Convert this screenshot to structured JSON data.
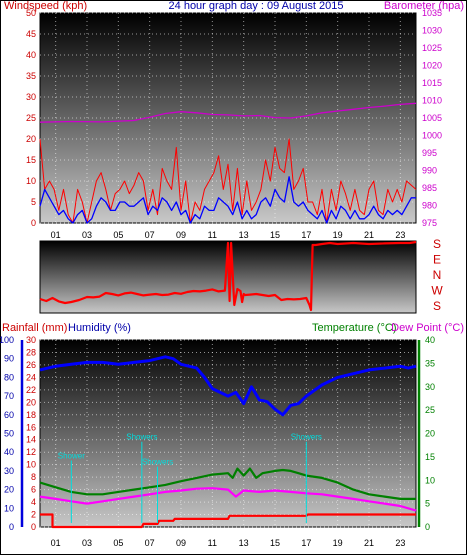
{
  "title": "24 hour graph day : 09 August 2015",
  "colors": {
    "wind": "#ff0000",
    "gust": "#ff0000",
    "avg": "#0000ff",
    "baro": "#cc00cc",
    "dir": "#ff0000",
    "humidity": "#0000ff",
    "temperature": "#008000",
    "dewpoint": "#ff00ff",
    "rainfall": "#ff0000",
    "rain_label": "#00dddd"
  },
  "chart_data": [
    {
      "type": "line",
      "title": "24 hour graph day : 09 August 2015",
      "ylabel_left": "Windspeed (kph)",
      "ylabel_right": "Barometer (hpa)",
      "ylim_left": [
        0,
        50
      ],
      "ylim_right": [
        975,
        1035
      ],
      "y_ticks_left": [
        "0",
        "5",
        "10",
        "15",
        "20",
        "25",
        "30",
        "35",
        "40",
        "45",
        "50"
      ],
      "y_ticks_right": [
        "975",
        "980",
        "985",
        "990",
        "995",
        "1000",
        "1005",
        "1010",
        "1015",
        "1020",
        "1025",
        "1030",
        "1035"
      ],
      "x_ticks": [
        "01",
        "03",
        "05",
        "07",
        "09",
        "11",
        "13",
        "15",
        "17",
        "19",
        "21",
        "23"
      ],
      "grid": true,
      "series": [
        {
          "key": "gust",
          "x": [
            0.0,
            0.3,
            0.6,
            0.9,
            1.2,
            1.5,
            1.8,
            2.1,
            2.4,
            2.7,
            3.0,
            3.3,
            3.6,
            3.9,
            4.2,
            4.5,
            4.8,
            5.1,
            5.4,
            5.7,
            6.0,
            6.3,
            6.6,
            6.9,
            7.2,
            7.5,
            7.8,
            8.1,
            8.4,
            8.7,
            9.0,
            9.3,
            9.6,
            9.9,
            10.2,
            10.5,
            10.8,
            11.1,
            11.4,
            11.7,
            12.0,
            12.3,
            12.6,
            12.9,
            13.2,
            13.5,
            13.8,
            14.1,
            14.4,
            14.7,
            15.0,
            15.3,
            15.6,
            15.9,
            16.2,
            16.5,
            16.8,
            17.1,
            17.4,
            17.7,
            18.0,
            18.3,
            18.6,
            18.9,
            19.2,
            19.5,
            19.8,
            20.1,
            20.4,
            20.7,
            21.0,
            21.3,
            21.6,
            21.9,
            22.2,
            22.5,
            22.8,
            23.1,
            23.4,
            23.7,
            24.0
          ],
          "values": [
            20,
            8,
            10,
            8,
            3,
            8,
            2,
            0,
            8,
            5,
            0,
            5,
            10,
            12,
            8,
            3,
            7,
            8,
            10,
            7,
            9,
            12,
            10,
            3,
            8,
            2,
            13,
            10,
            8,
            18,
            3,
            10,
            0,
            5,
            3,
            8,
            10,
            12,
            16,
            8,
            14,
            3,
            13,
            2,
            10,
            3,
            5,
            8,
            15,
            10,
            18,
            13,
            12,
            20,
            8,
            10,
            13,
            5,
            5,
            2,
            8,
            0,
            8,
            3,
            10,
            7,
            3,
            8,
            3,
            2,
            8,
            10,
            3,
            2,
            8,
            5,
            8,
            5,
            10,
            9,
            8
          ]
        },
        {
          "key": "avg",
          "x": [
            0.0,
            0.3,
            0.6,
            0.9,
            1.2,
            1.5,
            1.8,
            2.1,
            2.4,
            2.7,
            3.0,
            3.3,
            3.6,
            3.9,
            4.2,
            4.5,
            4.8,
            5.1,
            5.4,
            5.7,
            6.0,
            6.3,
            6.6,
            6.9,
            7.2,
            7.5,
            7.8,
            8.1,
            8.4,
            8.7,
            9.0,
            9.3,
            9.6,
            9.9,
            10.2,
            10.5,
            10.8,
            11.1,
            11.4,
            11.7,
            12.0,
            12.3,
            12.6,
            12.9,
            13.2,
            13.5,
            13.8,
            14.1,
            14.4,
            14.7,
            15.0,
            15.3,
            15.6,
            15.9,
            16.2,
            16.5,
            16.8,
            17.1,
            17.4,
            17.7,
            18.0,
            18.3,
            18.6,
            18.9,
            19.2,
            19.5,
            19.8,
            20.1,
            20.4,
            20.7,
            21.0,
            21.3,
            21.6,
            21.9,
            22.2,
            22.5,
            22.8,
            23.1,
            23.4,
            23.7,
            24.0
          ],
          "values": [
            4,
            8,
            6,
            4,
            2,
            3,
            1,
            0,
            2,
            3,
            0,
            1,
            4,
            6,
            5,
            3,
            3,
            5,
            5,
            4,
            4,
            5,
            6,
            2,
            4,
            3,
            6,
            5,
            3,
            5,
            2,
            3,
            0,
            2,
            1,
            4,
            3,
            3,
            6,
            5,
            4,
            2,
            5,
            1,
            3,
            1,
            2,
            5,
            6,
            4,
            8,
            6,
            5,
            11,
            5,
            4,
            5,
            3,
            2,
            1,
            3,
            0,
            3,
            1,
            4,
            3,
            1,
            3,
            1,
            1,
            2,
            4,
            2,
            1,
            3,
            2,
            3,
            2,
            4,
            6,
            6
          ]
        },
        {
          "key": "baro",
          "axis": "right",
          "x": [
            0,
            2,
            4,
            6,
            7,
            8,
            9,
            10,
            11,
            12,
            13,
            14,
            15,
            16,
            17,
            18,
            19,
            20,
            21,
            22,
            23,
            24
          ],
          "values": [
            1003.8,
            1004.0,
            1003.9,
            1004.3,
            1005.2,
            1006.3,
            1006.8,
            1006.5,
            1006.0,
            1005.9,
            1005.6,
            1005.7,
            1005.1,
            1005.0,
            1005.6,
            1006.5,
            1007.0,
            1007.5,
            1008.0,
            1008.4,
            1008.9,
            1009.2
          ]
        }
      ]
    },
    {
      "type": "line",
      "ylabel_right": [
        "S",
        "E",
        "N",
        "W",
        "S"
      ],
      "ylim": [
        0,
        360
      ],
      "series": [
        {
          "key": "dir",
          "x": [
            0,
            0.4,
            0.8,
            1.2,
            1.6,
            2.0,
            2.5,
            3.0,
            3.4,
            3.8,
            4.2,
            4.6,
            5.0,
            5.4,
            5.8,
            6.2,
            6.6,
            7.0,
            7.4,
            7.8,
            8.2,
            8.6,
            9.0,
            9.4,
            9.8,
            10.2,
            10.6,
            11.0,
            11.4,
            11.8,
            12.0,
            12.1,
            12.2,
            12.4,
            12.6,
            12.8,
            12.9,
            13.0,
            13.1,
            13.4,
            13.8,
            14.2,
            14.6,
            15.0,
            15.4,
            15.8,
            16.2,
            16.6,
            17.0,
            17.2,
            17.3,
            17.4,
            17.6,
            18.0,
            18.5,
            19.0,
            20.0,
            21.0,
            22.0,
            23.0,
            23.6,
            24.0
          ],
          "values": [
            70,
            60,
            75,
            58,
            50,
            55,
            65,
            80,
            78,
            82,
            100,
            95,
            88,
            98,
            102,
            95,
            88,
            92,
            95,
            90,
            92,
            100,
            96,
            105,
            110,
            108,
            112,
            118,
            108,
            112,
            350,
            60,
            350,
            40,
            120,
            110,
            55,
            95,
            90,
            92,
            95,
            90,
            85,
            90,
            65,
            70,
            68,
            70,
            75,
            40,
            15,
            340,
            340,
            345,
            350,
            345,
            350,
            345,
            348,
            350,
            350,
            355
          ]
        }
      ]
    },
    {
      "type": "line",
      "ylabel_rain": "Rainfall (mm)",
      "ylabel_hum": "Humidity (%)",
      "ylabel_temp": "Temperature (°C)",
      "ylabel_dew": "Dew Point (°C)",
      "ylim_rain": [
        0,
        30
      ],
      "ylim_hum": [
        0,
        100
      ],
      "ylim_temp": [
        0,
        40
      ],
      "y_ticks_rain": [
        "0",
        "2",
        "4",
        "6",
        "8",
        "10",
        "12",
        "14",
        "16",
        "18",
        "20",
        "22",
        "24",
        "26",
        "28",
        "30"
      ],
      "y_ticks_hum": [
        "0",
        "10",
        "20",
        "30",
        "40",
        "50",
        "60",
        "70",
        "80",
        "90",
        "100"
      ],
      "y_ticks_temp": [
        "0",
        "5",
        "10",
        "15",
        "20",
        "25",
        "30",
        "35",
        "40"
      ],
      "x_ticks": [
        "01",
        "03",
        "05",
        "07",
        "09",
        "11",
        "13",
        "15",
        "17",
        "19",
        "21",
        "23"
      ],
      "rain_annotations": [
        {
          "x": 2.0,
          "y": 11,
          "text": "Shower"
        },
        {
          "x": 6.5,
          "y": 14,
          "text": "Showers"
        },
        {
          "x": 7.5,
          "y": 10,
          "text": "Showers"
        },
        {
          "x": 17.0,
          "y": 14,
          "text": "Showers"
        }
      ],
      "series": [
        {
          "key": "humidity",
          "x": [
            0,
            1,
            2,
            3,
            4,
            5,
            6,
            7,
            8,
            8.5,
            9,
            10,
            10.5,
            11,
            11.5,
            12,
            12.5,
            13,
            13.5,
            14,
            14.5,
            15,
            15.5,
            16,
            16.5,
            17,
            18,
            19,
            20,
            21,
            22,
            23,
            23.5,
            24
          ],
          "values": [
            84,
            86,
            87,
            88,
            88,
            87,
            88,
            89,
            91,
            90,
            87,
            85,
            80,
            74,
            72,
            70,
            72,
            66,
            75,
            68,
            67,
            63,
            60,
            65,
            66,
            70,
            76,
            80,
            82,
            84,
            85,
            86,
            85,
            86
          ]
        },
        {
          "key": "temperature",
          "axis": "temp",
          "x": [
            0,
            1,
            2,
            3,
            4,
            5,
            6,
            7,
            8,
            9,
            10,
            11,
            12,
            12.3,
            12.6,
            13,
            13.4,
            13.8,
            14.2,
            15,
            15.5,
            16,
            16.5,
            17,
            18,
            19,
            20,
            21,
            22,
            23,
            24
          ],
          "values": [
            9.5,
            8.5,
            7.5,
            7.0,
            7.0,
            7.5,
            8.0,
            8.5,
            9.0,
            9.8,
            10.5,
            11.2,
            11.5,
            10.5,
            12.5,
            11.0,
            12.5,
            10.5,
            11.5,
            12.0,
            12.2,
            12.0,
            11.5,
            11.0,
            10.5,
            9.5,
            8.0,
            7.0,
            6.5,
            6.0,
            6.0
          ]
        },
        {
          "key": "dewpoint",
          "axis": "temp",
          "x": [
            0,
            1,
            2,
            3,
            4,
            5,
            6,
            7,
            8,
            9,
            10,
            11,
            12,
            12.5,
            13,
            14,
            15,
            16,
            17,
            18,
            19,
            20,
            21,
            22,
            23,
            24
          ],
          "values": [
            6.5,
            6.0,
            5.5,
            5.0,
            5.5,
            6.0,
            6.5,
            7.0,
            7.5,
            7.8,
            8.2,
            8.3,
            8.0,
            6.5,
            7.8,
            7.5,
            7.8,
            7.5,
            7.2,
            7.0,
            6.5,
            6.0,
            5.5,
            5.0,
            4.5,
            3.5
          ]
        },
        {
          "key": "rainfall",
          "axis": "rain",
          "x": [
            0,
            0.8,
            0.8,
            6.5,
            6.6,
            7.5,
            7.6,
            8.5,
            8.6,
            12.0,
            12.1,
            17.0,
            17.1,
            23.4,
            23.5,
            24.0
          ],
          "values": [
            2,
            2,
            0,
            0,
            0.5,
            0.5,
            1.0,
            1.0,
            1.3,
            1.3,
            1.8,
            1.8,
            2.0,
            2.0,
            2.0,
            2.0
          ]
        }
      ]
    }
  ]
}
